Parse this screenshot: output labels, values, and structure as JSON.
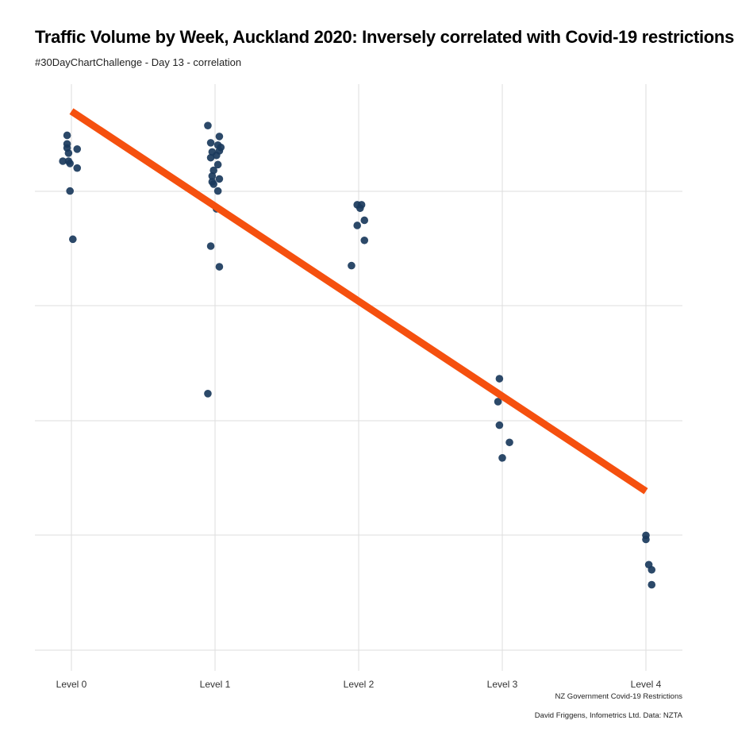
{
  "title": "Traffic Volume by Week, Auckland 2020: Inversely correlated with Covid-19 restrictions",
  "subtitle": "#30DayChartChallenge - Day 13 - correlation",
  "xlabel": "NZ Government Covid-19 Restrictions",
  "caption": "David Friggens, Infometrics Ltd. Data: NZTA",
  "colors": {
    "points": "#1a3a5c",
    "trend": "#f5500f",
    "grid": "#dddddd"
  },
  "chart_data": {
    "type": "scatter",
    "categories": [
      "Level 0",
      "Level 1",
      "Level 2",
      "Level 3",
      "Level 4"
    ],
    "ylim": [
      0,
      1
    ],
    "y_axis_labels": "none",
    "grid": true,
    "trendline": {
      "type": "linear",
      "start": {
        "category": "Level 0",
        "y": 0.939
      },
      "end": {
        "category": "Level 4",
        "y": 0.277
      }
    },
    "series": [
      {
        "points": [
          {
            "x": "Level 0",
            "jitter": -0.03,
            "y": 0.897
          },
          {
            "x": "Level 0",
            "jitter": -0.03,
            "y": 0.882
          },
          {
            "x": "Level 0",
            "jitter": -0.03,
            "y": 0.875
          },
          {
            "x": "Level 0",
            "jitter": 0.04,
            "y": 0.873
          },
          {
            "x": "Level 0",
            "jitter": -0.02,
            "y": 0.866
          },
          {
            "x": "Level 0",
            "jitter": -0.06,
            "y": 0.852
          },
          {
            "x": "Level 0",
            "jitter": -0.02,
            "y": 0.852
          },
          {
            "x": "Level 0",
            "jitter": -0.01,
            "y": 0.848
          },
          {
            "x": "Level 0",
            "jitter": 0.04,
            "y": 0.84
          },
          {
            "x": "Level 0",
            "jitter": -0.01,
            "y": 0.8
          },
          {
            "x": "Level 0",
            "jitter": 0.01,
            "y": 0.716
          },
          {
            "x": "Level 1",
            "jitter": -0.05,
            "y": 0.914
          },
          {
            "x": "Level 1",
            "jitter": 0.03,
            "y": 0.895
          },
          {
            "x": "Level 1",
            "jitter": -0.03,
            "y": 0.884
          },
          {
            "x": "Level 1",
            "jitter": 0.02,
            "y": 0.88
          },
          {
            "x": "Level 1",
            "jitter": 0.04,
            "y": 0.876
          },
          {
            "x": "Level 1",
            "jitter": 0.03,
            "y": 0.87
          },
          {
            "x": "Level 1",
            "jitter": -0.02,
            "y": 0.868
          },
          {
            "x": "Level 1",
            "jitter": 0.01,
            "y": 0.862
          },
          {
            "x": "Level 1",
            "jitter": -0.03,
            "y": 0.858
          },
          {
            "x": "Level 1",
            "jitter": 0.02,
            "y": 0.846
          },
          {
            "x": "Level 1",
            "jitter": -0.01,
            "y": 0.836
          },
          {
            "x": "Level 1",
            "jitter": -0.02,
            "y": 0.826
          },
          {
            "x": "Level 1",
            "jitter": 0.03,
            "y": 0.821
          },
          {
            "x": "Level 1",
            "jitter": -0.02,
            "y": 0.816
          },
          {
            "x": "Level 1",
            "jitter": -0.01,
            "y": 0.812
          },
          {
            "x": "Level 1",
            "jitter": 0.02,
            "y": 0.8
          },
          {
            "x": "Level 1",
            "jitter": 0.01,
            "y": 0.769
          },
          {
            "x": "Level 1",
            "jitter": -0.03,
            "y": 0.704
          },
          {
            "x": "Level 1",
            "jitter": 0.03,
            "y": 0.668
          },
          {
            "x": "Level 1",
            "jitter": -0.05,
            "y": 0.447
          },
          {
            "x": "Level 2",
            "jitter": -0.01,
            "y": 0.776
          },
          {
            "x": "Level 2",
            "jitter": 0.02,
            "y": 0.776
          },
          {
            "x": "Level 2",
            "jitter": 0.01,
            "y": 0.77
          },
          {
            "x": "Level 2",
            "jitter": 0.04,
            "y": 0.749
          },
          {
            "x": "Level 2",
            "jitter": -0.01,
            "y": 0.74
          },
          {
            "x": "Level 2",
            "jitter": 0.04,
            "y": 0.714
          },
          {
            "x": "Level 2",
            "jitter": -0.05,
            "y": 0.67
          },
          {
            "x": "Level 3",
            "jitter": -0.02,
            "y": 0.473
          },
          {
            "x": "Level 3",
            "jitter": -0.03,
            "y": 0.433
          },
          {
            "x": "Level 3",
            "jitter": -0.02,
            "y": 0.392
          },
          {
            "x": "Level 3",
            "jitter": 0.05,
            "y": 0.362
          },
          {
            "x": "Level 3",
            "jitter": 0.0,
            "y": 0.335
          },
          {
            "x": "Level 4",
            "jitter": 0.0,
            "y": 0.2
          },
          {
            "x": "Level 4",
            "jitter": 0.0,
            "y": 0.193
          },
          {
            "x": "Level 4",
            "jitter": 0.02,
            "y": 0.149
          },
          {
            "x": "Level 4",
            "jitter": 0.04,
            "y": 0.14
          },
          {
            "x": "Level 4",
            "jitter": 0.04,
            "y": 0.114
          }
        ]
      }
    ]
  }
}
